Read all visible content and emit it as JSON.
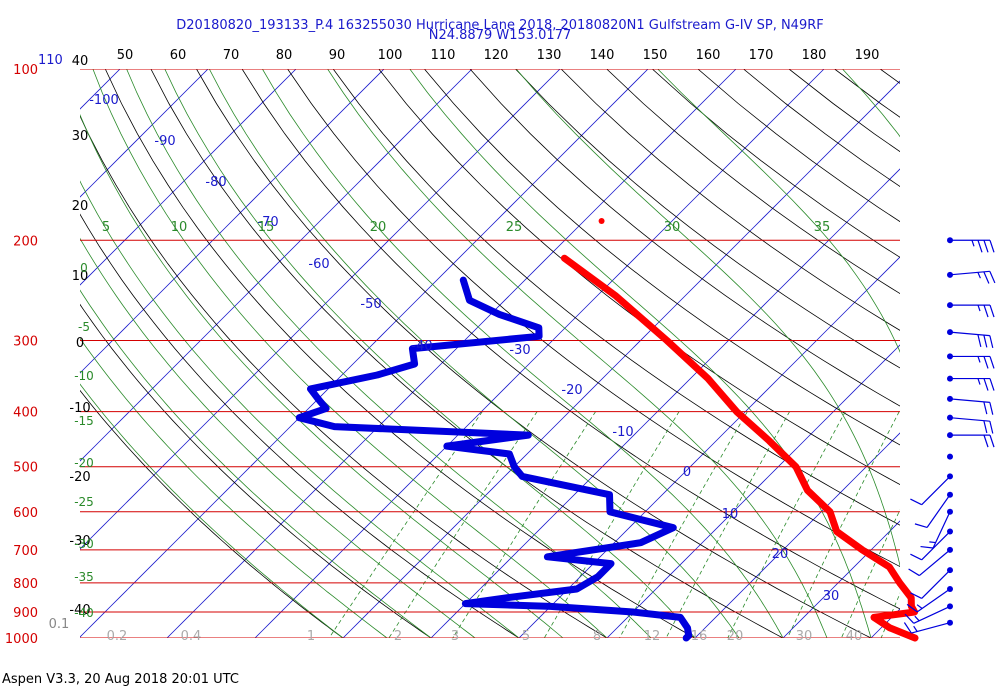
{
  "header": {
    "title_line1": "D20180820_193133_P.4 163255030 Hurricane Lane 2018, 20180820N1 Gulfstream G-IV SP, N49RF",
    "title_line2": "N24.8879 W153.0177"
  },
  "footer": {
    "text": "Aspen V3.3, 20 Aug 2018  20:01 UTC"
  },
  "colors": {
    "title": "#1a1acc",
    "isobar": "#d40000",
    "isotherm": "#1a1acc",
    "dry_adiabat": "#000000",
    "mixing_ratio": "#2a8a2a",
    "moist_adiabat": "#2a8a2a",
    "temperature": "#ff0000",
    "dewpoint": "#0000dd",
    "wind": "#0000dd"
  },
  "chart_data": {
    "type": "skew-t log-p",
    "pressure_levels": [
      100,
      200,
      300,
      400,
      500,
      600,
      700,
      800,
      900,
      1000
    ],
    "pressure_extra_labels": [
      "110"
    ],
    "top_axis_labels": [
      "50",
      "60",
      "70",
      "80",
      "90",
      "100",
      "110",
      "120",
      "130",
      "140",
      "150",
      "160",
      "170",
      "180",
      "190"
    ],
    "theta_labels": [
      "40",
      "30",
      "20",
      "10",
      "0",
      "-10",
      "-20",
      "-30",
      "-40"
    ],
    "isotherm_labels": [
      "-100",
      "-90",
      "-80",
      "-70",
      "-60",
      "-50",
      "-40",
      "-30",
      "-20",
      "-10",
      "0",
      "10",
      "20",
      "30"
    ],
    "moist_adiabat_labels": [
      "5",
      "10",
      "15",
      "20",
      "25",
      "30",
      "35"
    ],
    "moist_left_labels": [
      "0",
      "-5",
      "-10",
      "-15",
      "-20",
      "-25",
      "-30",
      "-35",
      "-40"
    ],
    "mixing_ratio_labels": [
      "0.1",
      "0.2",
      "0.4",
      "1",
      "2",
      "3",
      "5",
      "8",
      "12",
      "16",
      "20",
      "30",
      "40"
    ],
    "temperature_profile": [
      [
        215,
        -58
      ],
      [
        250,
        -48
      ],
      [
        300,
        -37
      ],
      [
        350,
        -28
      ],
      [
        400,
        -21
      ],
      [
        450,
        -14
      ],
      [
        500,
        -8
      ],
      [
        550,
        -4
      ],
      [
        600,
        1
      ],
      [
        650,
        4
      ],
      [
        700,
        9
      ],
      [
        750,
        14
      ],
      [
        800,
        17
      ],
      [
        850,
        20
      ],
      [
        880,
        21
      ],
      [
        900,
        22
      ],
      [
        920,
        18
      ],
      [
        960,
        21
      ],
      [
        1000,
        25
      ]
    ],
    "temperature_isolated_point": [
      185,
      -58
    ],
    "dewpoint_profile": [
      [
        235,
        -67
      ],
      [
        255,
        -64
      ],
      [
        270,
        -59
      ],
      [
        285,
        -53
      ],
      [
        295,
        -52
      ],
      [
        310,
        -65
      ],
      [
        330,
        -63
      ],
      [
        345,
        -66
      ],
      [
        365,
        -72
      ],
      [
        380,
        -70
      ],
      [
        395,
        -68
      ],
      [
        410,
        -70
      ],
      [
        425,
        -65
      ],
      [
        440,
        -42
      ],
      [
        460,
        -50
      ],
      [
        475,
        -42
      ],
      [
        500,
        -40
      ],
      [
        520,
        -38
      ],
      [
        560,
        -26
      ],
      [
        600,
        -24
      ],
      [
        640,
        -15
      ],
      [
        680,
        -17
      ],
      [
        720,
        -26
      ],
      [
        740,
        -18
      ],
      [
        780,
        -18
      ],
      [
        820,
        -19
      ],
      [
        850,
        -26
      ],
      [
        870,
        -30
      ],
      [
        880,
        -20
      ],
      [
        900,
        -10
      ],
      [
        920,
        -4
      ],
      [
        960,
        -2
      ],
      [
        990,
        -1
      ],
      [
        1000,
        -1
      ]
    ],
    "wind_barbs": [
      {
        "pressure": 200,
        "speed_kt": 35,
        "direction_deg": 270
      },
      {
        "pressure": 230,
        "speed_kt": 25,
        "direction_deg": 265
      },
      {
        "pressure": 260,
        "speed_kt": 25,
        "direction_deg": 270
      },
      {
        "pressure": 290,
        "speed_kt": 30,
        "direction_deg": 275
      },
      {
        "pressure": 320,
        "speed_kt": 25,
        "direction_deg": 270
      },
      {
        "pressure": 350,
        "speed_kt": 25,
        "direction_deg": 270
      },
      {
        "pressure": 380,
        "speed_kt": 20,
        "direction_deg": 275
      },
      {
        "pressure": 410,
        "speed_kt": 20,
        "direction_deg": 275
      },
      {
        "pressure": 440,
        "speed_kt": 20,
        "direction_deg": 270
      },
      {
        "pressure": 480,
        "speed_kt": 0,
        "direction_deg": 0
      },
      {
        "pressure": 520,
        "speed_kt": 10,
        "direction_deg": 45
      },
      {
        "pressure": 560,
        "speed_kt": 10,
        "direction_deg": 35
      },
      {
        "pressure": 600,
        "speed_kt": 15,
        "direction_deg": 25
      },
      {
        "pressure": 650,
        "speed_kt": 10,
        "direction_deg": 45
      },
      {
        "pressure": 700,
        "speed_kt": 10,
        "direction_deg": 50
      },
      {
        "pressure": 760,
        "speed_kt": 10,
        "direction_deg": 45
      },
      {
        "pressure": 820,
        "speed_kt": 15,
        "direction_deg": 55
      },
      {
        "pressure": 880,
        "speed_kt": 15,
        "direction_deg": 65
      },
      {
        "pressure": 940,
        "speed_kt": 15,
        "direction_deg": 75
      }
    ]
  }
}
